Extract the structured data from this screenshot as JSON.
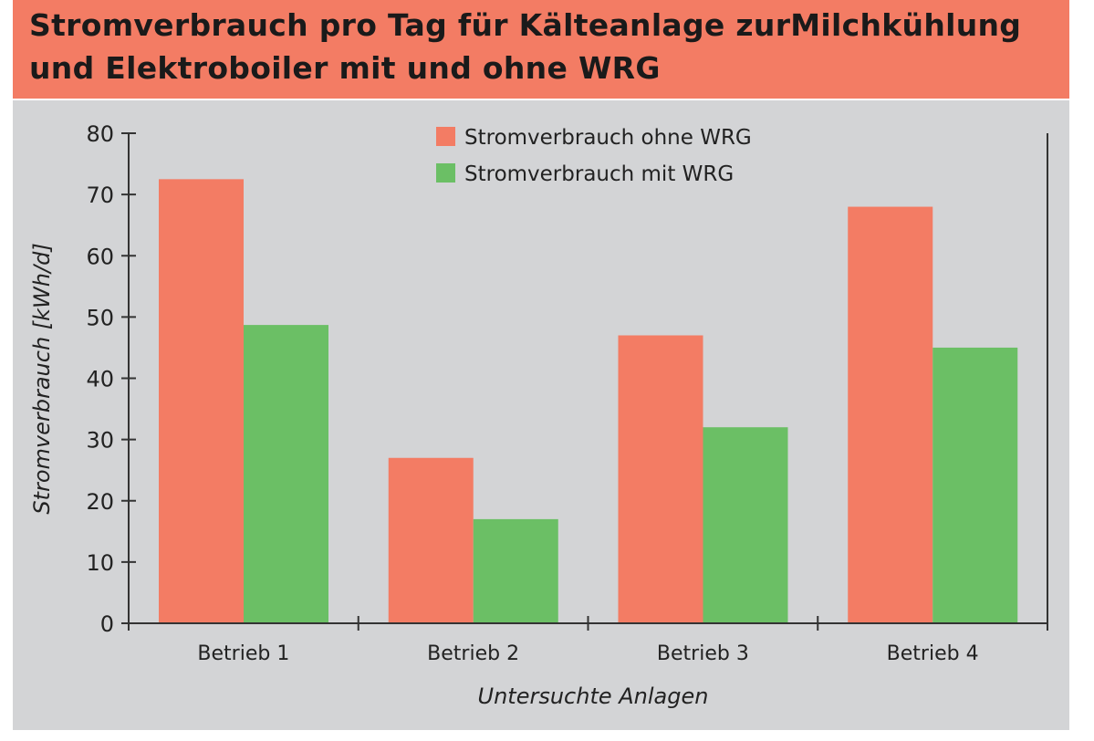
{
  "chart_data": {
    "type": "bar",
    "title_lines": [
      "Stromverbrauch pro Tag für Kälteanlage zurMilchkühlung",
      "und Elektroboiler mit und ohne WRG"
    ],
    "categories": [
      "Betrieb 1",
      "Betrieb 2",
      "Betrieb 3",
      "Betrieb 4"
    ],
    "series": [
      {
        "name": "Stromverbrauch ohne WRG",
        "color": "#F37C64",
        "values": [
          72.5,
          27,
          47,
          68
        ]
      },
      {
        "name": "Stromverbrauch mit WRG",
        "color": "#6BBF65",
        "values": [
          48.7,
          17,
          32,
          45
        ]
      }
    ],
    "xlabel": "Untersuchte Anlagen",
    "ylabel": "Stromverbrauch [kWh/d]",
    "ylim": [
      0,
      80
    ],
    "yticks": [
      0,
      10,
      20,
      30,
      40,
      50,
      60,
      70,
      80
    ],
    "grid": false,
    "legend_position": "top-center"
  }
}
